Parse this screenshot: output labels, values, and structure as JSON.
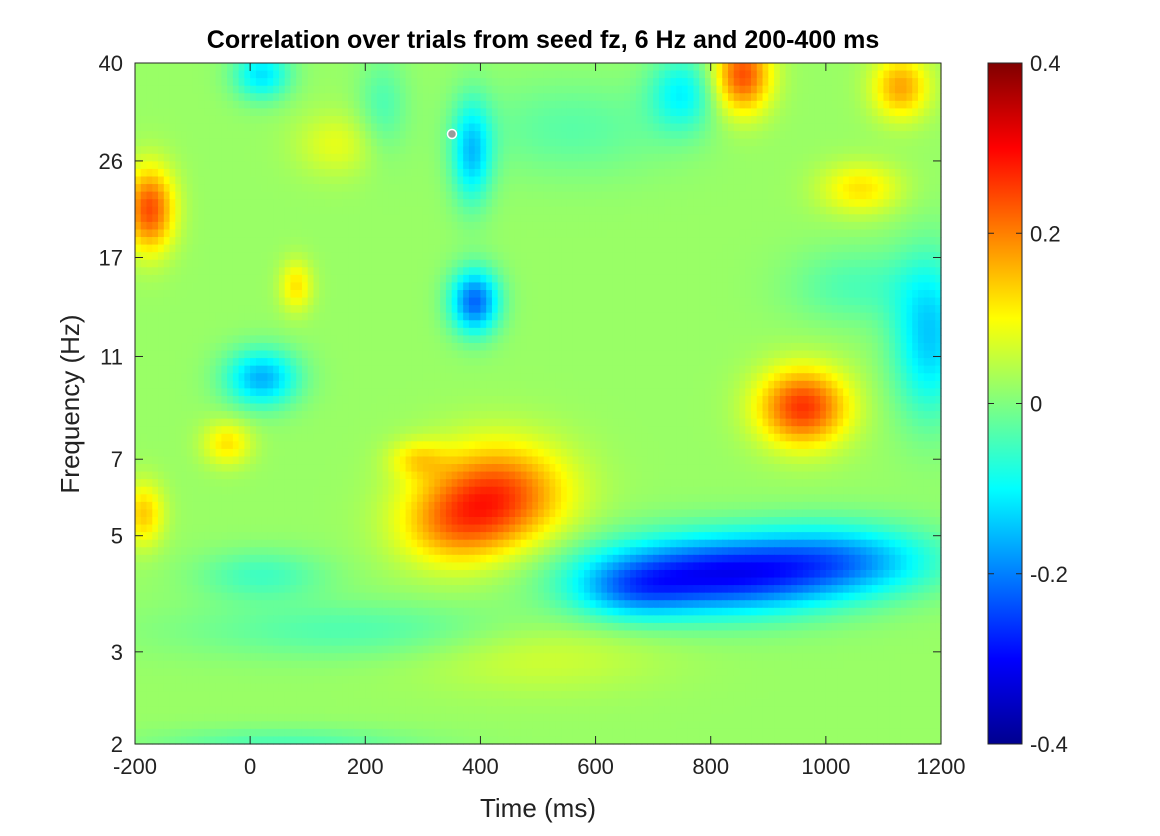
{
  "chart_data": {
    "type": "heatmap",
    "title": "Correlation over trials from seed fz, 6 Hz and 200-400 ms",
    "xlabel": "Time (ms)",
    "ylabel": "Frequency (Hz)",
    "xlim": [
      -200,
      1200
    ],
    "ylim": [
      2,
      40
    ],
    "yscale": "log",
    "x_ticks": [
      "-200",
      "0",
      "200",
      "400",
      "600",
      "800",
      "1000",
      "1200"
    ],
    "x_tick_values": [
      -200,
      0,
      200,
      400,
      600,
      800,
      1000,
      1200
    ],
    "y_ticks": [
      "2",
      "3",
      "5",
      "7",
      "11",
      "17",
      "26",
      "40"
    ],
    "y_tick_values": [
      2,
      3,
      5,
      7,
      11,
      17,
      26,
      40
    ],
    "colormap": "jet",
    "clim": [
      -0.4,
      0.4
    ],
    "colorbar_ticks": [
      "-0.4",
      "-0.2",
      "0",
      "0.2",
      "0.4"
    ],
    "colorbar_tick_values": [
      -0.4,
      -0.2,
      0,
      0.2,
      0.4
    ],
    "baseline_value": 0.02,
    "features": [
      {
        "t": 430,
        "f": 6.0,
        "st": 85,
        "sf": 0.16,
        "v": 0.22
      },
      {
        "t": 350,
        "f": 5.2,
        "st": 70,
        "sf": 0.13,
        "v": 0.12
      },
      {
        "t": 290,
        "f": 7.0,
        "st": 35,
        "sf": 0.06,
        "v": 0.08
      },
      {
        "t": 800,
        "f": 4.2,
        "st": 150,
        "sf": 0.12,
        "v": -0.3
      },
      {
        "t": 1030,
        "f": 4.5,
        "st": 120,
        "sf": 0.11,
        "v": -0.17
      },
      {
        "t": 660,
        "f": 3.9,
        "st": 70,
        "sf": 0.09,
        "v": -0.1
      },
      {
        "t": 960,
        "f": 8.8,
        "st": 55,
        "sf": 0.12,
        "v": 0.24
      },
      {
        "t": 20,
        "f": 10.0,
        "st": 45,
        "sf": 0.09,
        "v": -0.18
      },
      {
        "t": 390,
        "f": 14.0,
        "st": 30,
        "sf": 0.1,
        "v": -0.24
      },
      {
        "t": 385,
        "f": 27.0,
        "st": 25,
        "sf": 0.16,
        "v": -0.16
      },
      {
        "t": -175,
        "f": 21.0,
        "st": 30,
        "sf": 0.13,
        "v": 0.22
      },
      {
        "t": 855,
        "f": 38.0,
        "st": 35,
        "sf": 0.12,
        "v": 0.22
      },
      {
        "t": 1130,
        "f": 36.0,
        "st": 35,
        "sf": 0.1,
        "v": 0.15
      },
      {
        "t": 1180,
        "f": 12.0,
        "st": 45,
        "sf": 0.25,
        "v": -0.16
      },
      {
        "t": -185,
        "f": 5.5,
        "st": 25,
        "sf": 0.1,
        "v": 0.12
      },
      {
        "t": -40,
        "f": 7.5,
        "st": 30,
        "sf": 0.07,
        "v": 0.1
      },
      {
        "t": 200,
        "f": 3.3,
        "st": 230,
        "sf": 0.09,
        "v": -0.06
      },
      {
        "t": 20,
        "f": 4.2,
        "st": 80,
        "sf": 0.08,
        "v": -0.07
      },
      {
        "t": 60,
        "f": 2.0,
        "st": 160,
        "sf": 0.05,
        "v": -0.06
      },
      {
        "t": 1060,
        "f": 23.0,
        "st": 50,
        "sf": 0.08,
        "v": 0.1
      },
      {
        "t": 80,
        "f": 15.0,
        "st": 20,
        "sf": 0.08,
        "v": 0.1
      },
      {
        "t": 230,
        "f": 33.0,
        "st": 30,
        "sf": 0.15,
        "v": -0.06
      },
      {
        "t": 20,
        "f": 38.0,
        "st": 35,
        "sf": 0.08,
        "v": -0.14
      },
      {
        "t": 560,
        "f": 30.0,
        "st": 120,
        "sf": 0.15,
        "v": -0.05
      },
      {
        "t": 750,
        "f": 35.0,
        "st": 40,
        "sf": 0.12,
        "v": -0.12
      },
      {
        "t": 500,
        "f": 3.0,
        "st": 150,
        "sf": 0.12,
        "v": 0.05
      },
      {
        "t": 1050,
        "f": 15.0,
        "st": 80,
        "sf": 0.12,
        "v": -0.06
      },
      {
        "t": 150,
        "f": 28.0,
        "st": 50,
        "sf": 0.1,
        "v": 0.06
      }
    ]
  }
}
